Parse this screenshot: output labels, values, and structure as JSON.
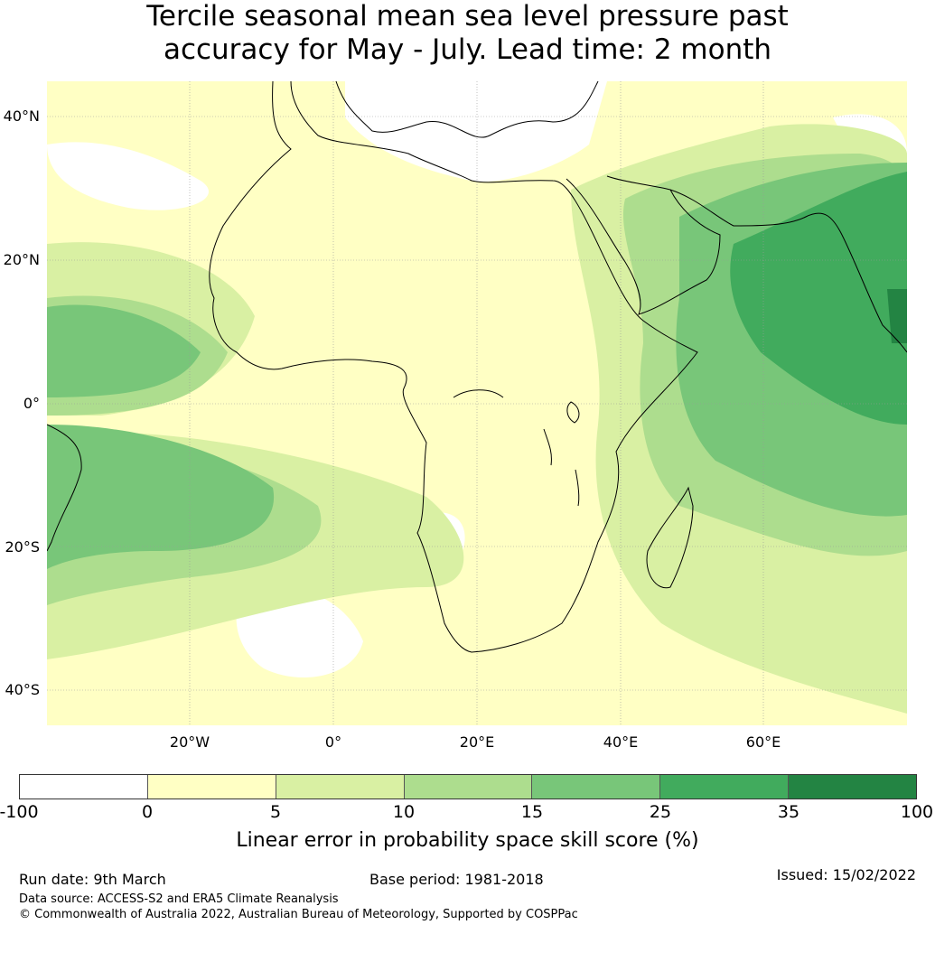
{
  "title_line1": "Tercile seasonal mean sea level pressure past",
  "title_line2": "accuracy for May - July. Lead time: 2 month",
  "map": {
    "lat_labels": [
      "40°N",
      "20°N",
      "0°",
      "20°S",
      "40°S"
    ],
    "lon_labels": [
      "20°W",
      "0°",
      "20°E",
      "40°E",
      "60°E"
    ],
    "colors": {
      "land_outline": "#000000",
      "grid": "#999999"
    }
  },
  "colorbar": {
    "ticks": [
      "-100",
      "0",
      "5",
      "10",
      "15",
      "25",
      "35",
      "100"
    ],
    "colors": [
      "#ffffff",
      "#ffffc4",
      "#d9f0a3",
      "#addd8e",
      "#78c679",
      "#41ab5d",
      "#238443"
    ],
    "label": "Linear error in probability space skill score (%)"
  },
  "footer": {
    "run_date": "Run date: 9th March",
    "base_period": "Base period: 1981-2018",
    "issued": "Issued: 15/02/2022",
    "data_source": "Data source: ACCESS-S2 and ERA5 Climate Reanalysis",
    "copyright": "© Commonwealth of Australia 2022, Australian Bureau of Meteorology, Supported by COSPPac"
  }
}
